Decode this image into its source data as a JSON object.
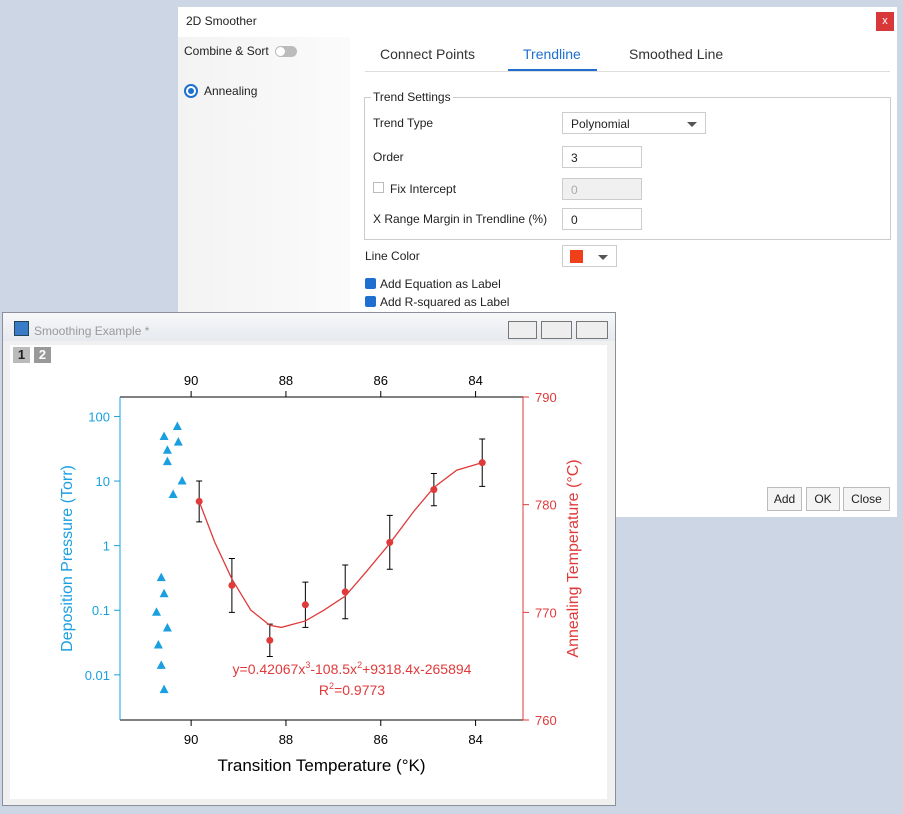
{
  "dialog": {
    "title": "2D Smoother",
    "close": "x",
    "sidebar": {
      "combine_sort": "Combine & Sort",
      "item": "Annealing"
    },
    "tabs": [
      "Connect Points",
      "Trendline",
      "Smoothed Line"
    ],
    "group": {
      "title": "Trend Settings",
      "fields": [
        {
          "label": "Trend Type",
          "value": "Polynomial"
        },
        {
          "label": "Order",
          "value": "3"
        },
        {
          "label": "Fix Intercept",
          "value": "0"
        },
        {
          "label": "X Range Margin in Trendline (%)",
          "value": "0"
        }
      ]
    },
    "line_color": {
      "label": "Line Color",
      "color": "#f0401a"
    },
    "checkboxes": [
      "Add Equation as Label",
      "Add R-squared as Label"
    ],
    "buttons": [
      "Add",
      "OK",
      "Close"
    ]
  },
  "graph_window": {
    "title": "Smoothing Example *",
    "layers": [
      "1",
      "2"
    ]
  },
  "chart_data": {
    "type": "scatter",
    "xlabel": "Transition Temperature (°K)",
    "ylabel": "Deposition Pressure (Torr)",
    "y2label": "Annealing Temperature (°C)",
    "xlim": [
      91.5,
      83
    ],
    "xticks": [
      90,
      88,
      86,
      84
    ],
    "ylim": [
      0.002,
      200
    ],
    "yscale": "log",
    "yticks": [
      0.01,
      0.1,
      1,
      10,
      100
    ],
    "y2lim": [
      760,
      790
    ],
    "y2ticks": [
      760,
      770,
      780,
      790
    ],
    "series": [
      {
        "color": "#1a9fe0",
        "marker": "triangle",
        "x": [
          90.57,
          90.29,
          90.5,
          90.27,
          90.5,
          90.19,
          90.38,
          90.63,
          90.57,
          90.73,
          90.5,
          90.69,
          90.63,
          90.57
        ],
        "values": [
          49,
          70,
          30,
          40,
          20,
          10,
          6.2,
          0.32,
          0.18,
          0.093,
          0.053,
          0.029,
          0.014,
          0.0059
        ]
      },
      {
        "color": "#e03a3a",
        "marker": "circle",
        "axis": "y2",
        "x": [
          89.83,
          89.14,
          88.34,
          87.59,
          86.75,
          85.81,
          84.88,
          83.86
        ],
        "values": [
          780.3,
          772.5,
          767.4,
          770.7,
          771.9,
          776.5,
          781.4,
          783.9
        ],
        "errors": [
          1.9,
          2.5,
          1.5,
          2.1,
          2.5,
          2.5,
          1.5,
          2.2
        ]
      },
      {
        "color": "#e03a3a",
        "marker": "line",
        "axis": "y2",
        "x": [
          89.83,
          89.5,
          89.14,
          88.74,
          88.34,
          88.1,
          87.59,
          87.2,
          86.75,
          86.3,
          85.81,
          85.3,
          84.88,
          84.4,
          83.86
        ],
        "values": [
          780.3,
          776.5,
          773.1,
          770.2,
          768.8,
          768.6,
          769.2,
          770.2,
          771.5,
          773.8,
          776.4,
          779.4,
          781.6,
          783.2,
          783.9
        ]
      }
    ],
    "annotation": {
      "equation": [
        "y=0.42067x",
        "3",
        "-108.5x",
        "2",
        "+9318.4x-265894"
      ],
      "r_squared": [
        "R",
        "2",
        "=0.9773"
      ]
    }
  }
}
